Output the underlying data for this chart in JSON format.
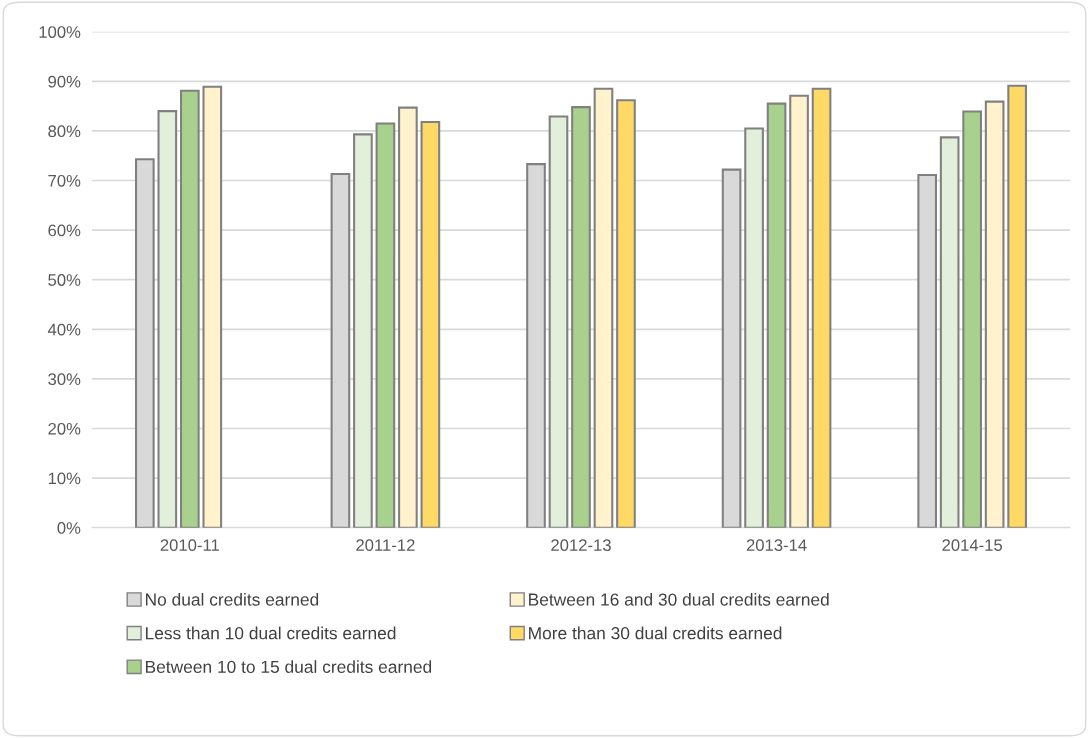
{
  "chart_data": {
    "type": "bar",
    "categories": [
      "2010-11",
      "2011-12",
      "2012-13",
      "2013-14",
      "2014-15"
    ],
    "series": [
      {
        "name": "No dual credits earned",
        "color": "#d9d9d9",
        "values": [
          74.3,
          71.3,
          73.3,
          72.2,
          71.1
        ]
      },
      {
        "name": "Less than 10 dual credits earned",
        "color": "#e2efda",
        "values": [
          84.0,
          79.3,
          82.9,
          80.5,
          78.7
        ]
      },
      {
        "name": "Between 10 to 15 dual credits earned",
        "color": "#a9d18e",
        "values": [
          88.1,
          81.5,
          84.8,
          85.5,
          83.9
        ]
      },
      {
        "name": "Between 16 and 30 dual credits earned",
        "color": "#fff2cc",
        "values": [
          88.9,
          84.7,
          88.5,
          87.1,
          85.9
        ]
      },
      {
        "name": "More than 30 dual credits earned",
        "color": "#ffd966",
        "values": [
          null,
          81.8,
          86.2,
          88.5,
          89.1
        ]
      }
    ],
    "ylim": [
      0,
      100
    ],
    "yticks": [
      {
        "value": 0,
        "label": "0%"
      },
      {
        "value": 10,
        "label": "10%"
      },
      {
        "value": 20,
        "label": "20%"
      },
      {
        "value": 30,
        "label": "30%"
      },
      {
        "value": 40,
        "label": "40%"
      },
      {
        "value": 50,
        "label": "50%"
      },
      {
        "value": 60,
        "label": "60%"
      },
      {
        "value": 70,
        "label": "70%"
      },
      {
        "value": 80,
        "label": "80%"
      },
      {
        "value": 90,
        "label": "90%"
      },
      {
        "value": 100,
        "label": "100%"
      }
    ],
    "grid": "y",
    "legend": "bottom"
  }
}
